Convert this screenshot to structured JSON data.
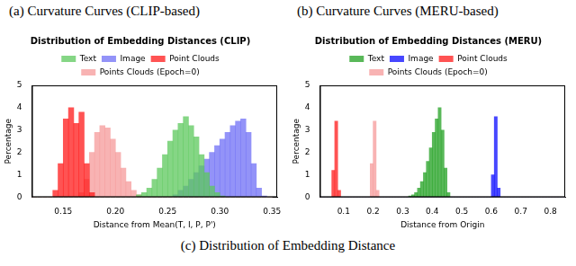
{
  "captions": [
    "(a) Curvature Curves (CLIP-based)",
    "(b) Curvature Curves (MERU-based)"
  ],
  "figure_caption": "(c) Distribution of Embedding Distance",
  "chart_data": [
    {
      "type": "histogram",
      "title": "Distribution of Embedding Distances (CLIP)",
      "x_label": "Distance from Mean(T, I, P, P')",
      "y_label": "Percentage",
      "bins": [
        0.12,
        0.125,
        0.13,
        0.135,
        0.14,
        0.145,
        0.15,
        0.155,
        0.16,
        0.165,
        0.17,
        0.175,
        0.18,
        0.185,
        0.19,
        0.195,
        0.2,
        0.205,
        0.21,
        0.215,
        0.22,
        0.225,
        0.23,
        0.235,
        0.24,
        0.245,
        0.25,
        0.255,
        0.26,
        0.265,
        0.27,
        0.275,
        0.28,
        0.285,
        0.29,
        0.295,
        0.3,
        0.305,
        0.31,
        0.315,
        0.32,
        0.325,
        0.33,
        0.335,
        0.34,
        0.345,
        0.35
      ],
      "series": [
        {
          "name": "Text",
          "color": "#5cc85c",
          "values": [
            0,
            0,
            0,
            0,
            0,
            0,
            0,
            0,
            0,
            0,
            0,
            0,
            0,
            0,
            0,
            0,
            0,
            0,
            0,
            0,
            0.1,
            0.2,
            0.4,
            0.8,
            1.3,
            1.9,
            2.5,
            3,
            3.3,
            3.6,
            3.2,
            2.7,
            1.9,
            1.1,
            0.5,
            0.2,
            0.05,
            0,
            0,
            0,
            0,
            0,
            0,
            0,
            0,
            0
          ]
        },
        {
          "name": "Image",
          "color": "#6f6ff5",
          "values": [
            0,
            0,
            0,
            0,
            0,
            0,
            0,
            0,
            0,
            0,
            0,
            0,
            0,
            0,
            0,
            0,
            0,
            0,
            0,
            0,
            0,
            0,
            0,
            0,
            0,
            0,
            0,
            0.1,
            0.3,
            0.5,
            0.8,
            1.1,
            1.4,
            1.7,
            2,
            2.3,
            2.6,
            2.9,
            3.2,
            3.4,
            3.5,
            2.9,
            1.5,
            0.4,
            0.05,
            0
          ]
        },
        {
          "name": "Point Clouds",
          "color": "#ff1a1a",
          "values": [
            0,
            0,
            0,
            0,
            0.3,
            1.5,
            3.5,
            4,
            3.3,
            3.8,
            1.5,
            0.2,
            0,
            0,
            0,
            0,
            0,
            0,
            0,
            0,
            0,
            0,
            0,
            0,
            0,
            0,
            0,
            0,
            0,
            0,
            0,
            0,
            0,
            0,
            0,
            0,
            0,
            0,
            0,
            0,
            0,
            0,
            0,
            0,
            0,
            0
          ]
        },
        {
          "name": "Points Clouds (Epoch=0)",
          "color": "#f59a9a",
          "values": [
            0,
            0,
            0,
            0,
            0,
            0,
            0,
            0,
            0,
            0.2,
            0.8,
            2,
            2.9,
            3.2,
            3.1,
            2.6,
            2,
            1.3,
            0.7,
            0.3,
            0.1,
            0,
            0,
            0,
            0,
            0,
            0,
            0,
            0,
            0,
            0,
            0,
            0,
            0,
            0,
            0,
            0,
            0,
            0,
            0,
            0,
            0,
            0,
            0,
            0,
            0
          ]
        }
      ],
      "xlim": [
        0.12,
        0.355
      ],
      "xticks": [
        0.15,
        {
          "value": 0.2,
          "label": "0.20"
        },
        0.25,
        {
          "value": 0.3,
          "label": "0.30"
        },
        0.35
      ],
      "ylim": [
        0,
        5
      ],
      "yticks": [
        0,
        1,
        2,
        3,
        4,
        5
      ],
      "grid": false,
      "legend": "upper center"
    },
    {
      "type": "histogram",
      "title": "Distribution of Embedding Distances (MERU)",
      "x_label": "Distance from Origin",
      "y_label": "Percentage",
      "bins": [
        0.02,
        0.03,
        0.04,
        0.05,
        0.06,
        0.07,
        0.08,
        0.09,
        0.1,
        0.11,
        0.12,
        0.13,
        0.14,
        0.15,
        0.16,
        0.17,
        0.18,
        0.19,
        0.2,
        0.21,
        0.22,
        0.23,
        0.24,
        0.25,
        0.26,
        0.27,
        0.28,
        0.29,
        0.3,
        0.31,
        0.32,
        0.33,
        0.34,
        0.35,
        0.36,
        0.37,
        0.38,
        0.39,
        0.4,
        0.41,
        0.42,
        0.43,
        0.44,
        0.45,
        0.46,
        0.47,
        0.48,
        0.49,
        0.5,
        0.51,
        0.52,
        0.53,
        0.54,
        0.55,
        0.56,
        0.57,
        0.58,
        0.59,
        0.6,
        0.61,
        0.62,
        0.63,
        0.64,
        0.65,
        0.66,
        0.67,
        0.68,
        0.69,
        0.7,
        0.71,
        0.72,
        0.73,
        0.74,
        0.75,
        0.76,
        0.77,
        0.78,
        0.79,
        0.8,
        0.81,
        0.82,
        0.83,
        0.84,
        0.85
      ],
      "series": [
        {
          "name": "Text",
          "color": "#22a022",
          "values": [
            0,
            0,
            0,
            0,
            0,
            0,
            0,
            0,
            0,
            0,
            0,
            0,
            0,
            0,
            0,
            0,
            0,
            0,
            0,
            0,
            0,
            0,
            0,
            0,
            0,
            0,
            0,
            0,
            0,
            0,
            0.05,
            0.1,
            0.2,
            0.4,
            0.7,
            1.1,
            1.6,
            2.2,
            2.9,
            3.5,
            4,
            3,
            1.3,
            0.2,
            0,
            0,
            0,
            0,
            0,
            0,
            0,
            0,
            0,
            0,
            0,
            0,
            0,
            0,
            0,
            0,
            0,
            0,
            0,
            0,
            0,
            0,
            0,
            0,
            0,
            0,
            0,
            0,
            0,
            0,
            0,
            0,
            0,
            0,
            0,
            0,
            0,
            0,
            0
          ]
        },
        {
          "name": "Image",
          "color": "#0a0aff",
          "values": [
            0,
            0,
            0,
            0,
            0,
            0,
            0,
            0,
            0,
            0,
            0,
            0,
            0,
            0,
            0,
            0,
            0,
            0,
            0,
            0,
            0,
            0,
            0,
            0,
            0,
            0,
            0,
            0,
            0,
            0,
            0,
            0,
            0,
            0,
            0,
            0,
            0,
            0,
            0,
            0,
            0,
            0,
            0,
            0,
            0,
            0,
            0,
            0,
            0,
            0,
            0,
            0,
            0,
            0,
            0,
            0,
            0,
            0,
            1,
            3.6,
            0.4,
            0,
            0,
            0,
            0,
            0,
            0,
            0,
            0,
            0,
            0,
            0,
            0,
            0,
            0,
            0,
            0,
            0,
            0,
            0,
            0,
            0,
            0
          ]
        },
        {
          "name": "Point Clouds",
          "color": "#ff1a1a",
          "values": [
            0,
            0,
            0,
            0,
            1.2,
            3.4,
            0.3,
            0,
            0,
            0,
            0,
            0,
            0,
            0,
            0,
            0,
            0,
            0,
            0,
            0,
            0,
            0,
            0,
            0,
            0,
            0,
            0,
            0,
            0,
            0,
            0,
            0,
            0,
            0,
            0,
            0,
            0,
            0,
            0,
            0,
            0,
            0,
            0,
            0,
            0,
            0,
            0,
            0,
            0,
            0,
            0,
            0,
            0,
            0,
            0,
            0,
            0,
            0,
            0,
            0,
            0,
            0,
            0,
            0,
            0,
            0,
            0,
            0,
            0,
            0,
            0,
            0,
            0,
            0,
            0,
            0,
            0,
            0,
            0,
            0,
            0,
            0,
            0
          ]
        },
        {
          "name": "Points Clouds (Epoch=0)",
          "color": "#f59a9a",
          "values": [
            0,
            0,
            0,
            0,
            0,
            0,
            0,
            0,
            0,
            0,
            0,
            0,
            0,
            0,
            0,
            0,
            0,
            1.5,
            3.4,
            0.3,
            0,
            0,
            0,
            0,
            0,
            0,
            0,
            0,
            0,
            0,
            0,
            0,
            0,
            0,
            0,
            0,
            0,
            0,
            0,
            0,
            0,
            0,
            0,
            0,
            0,
            0,
            0,
            0,
            0,
            0,
            0,
            0,
            0,
            0,
            0,
            0,
            0,
            0,
            0,
            0,
            0,
            0,
            0,
            0,
            0,
            0,
            0,
            0,
            0,
            0,
            0,
            0,
            0,
            0,
            0,
            0,
            0,
            0,
            0,
            0,
            0,
            0,
            0
          ]
        }
      ],
      "xlim": [
        0.02,
        0.85
      ],
      "xticks": [
        0.1,
        0.2,
        0.3,
        0.4,
        0.5,
        0.6,
        0.7,
        0.8
      ],
      "ylim": [
        0,
        5
      ],
      "yticks": [
        0,
        1,
        2,
        3,
        4,
        5
      ],
      "grid": false,
      "legend": "upper center"
    }
  ]
}
